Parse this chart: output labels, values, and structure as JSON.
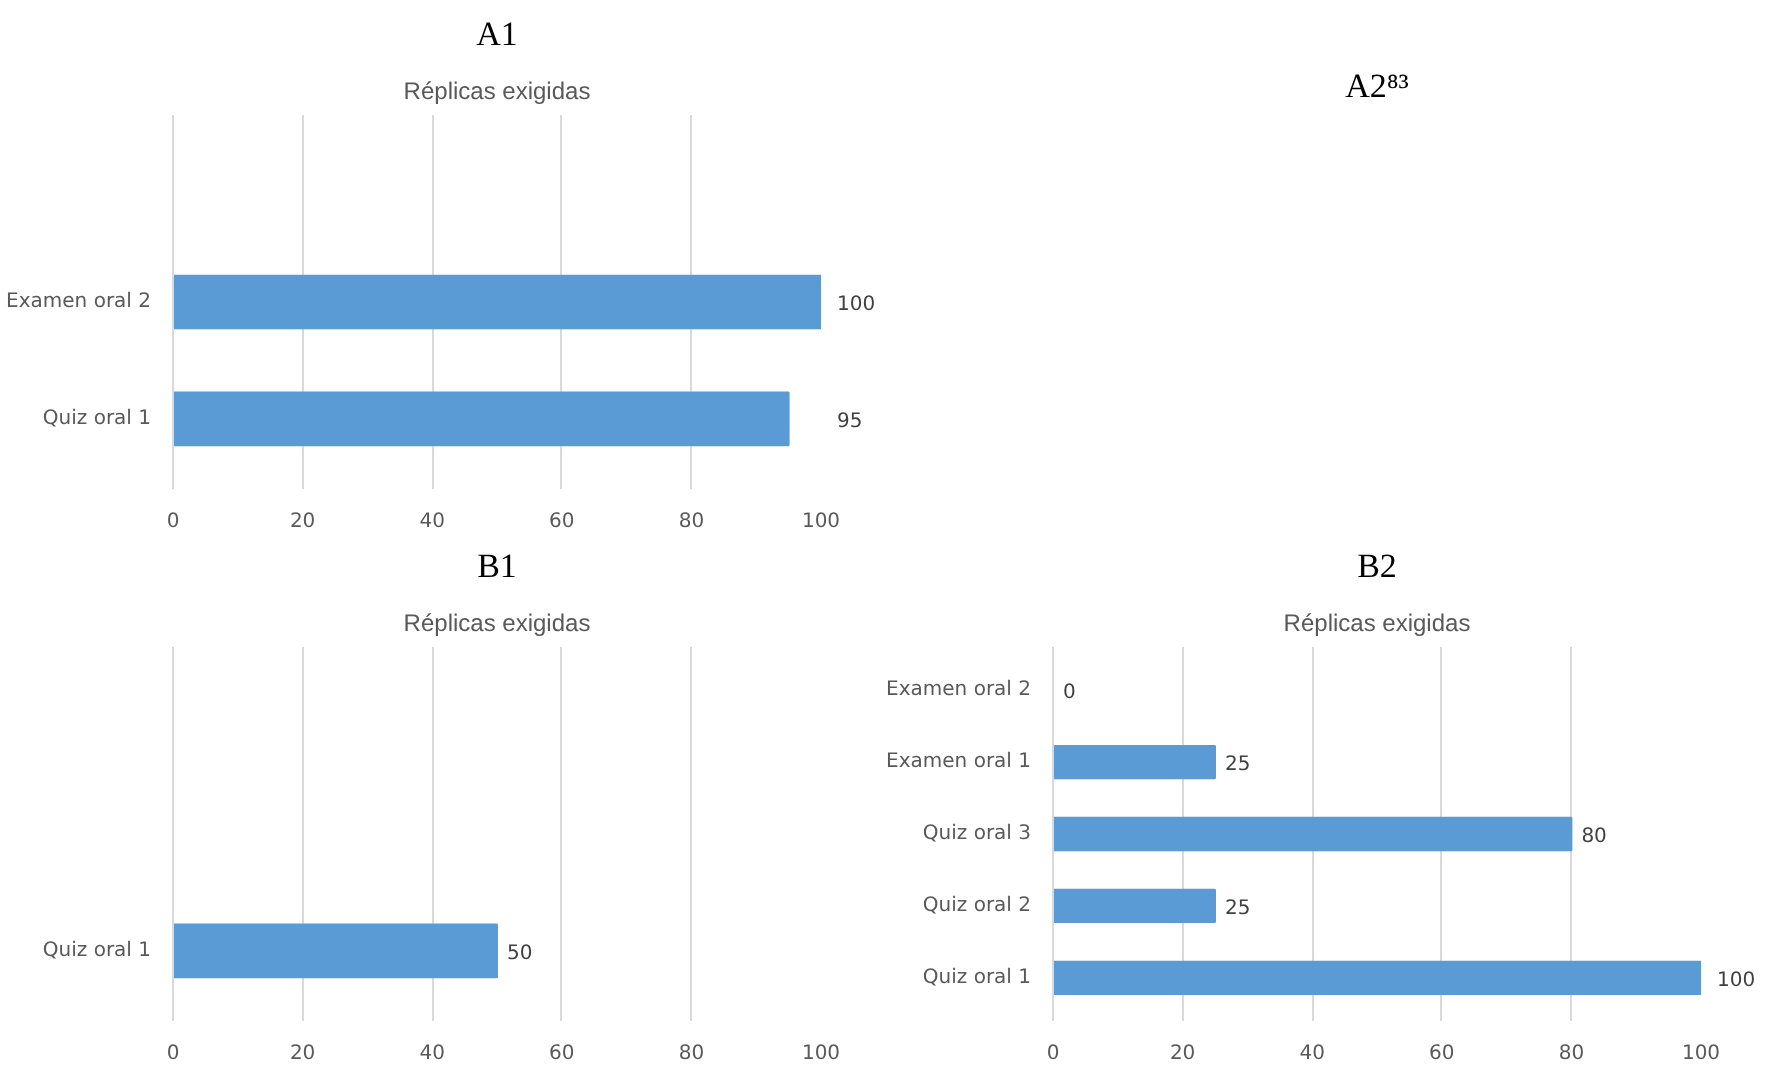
{
  "chart_data": [
    {
      "type": "bar",
      "title": "A1",
      "subtitle": "Réplicas exigidas",
      "orientation": "horizontal",
      "categories": [
        "Examen oral 2",
        "Quiz oral 1"
      ],
      "values": [
        100,
        95
      ],
      "color": "#5b9bd5",
      "xlim": [
        0,
        100
      ],
      "xticks": [
        0,
        20,
        40,
        60,
        80,
        100
      ],
      "grid": "x",
      "data_labels": true
    },
    {
      "type": "other",
      "title": "A2⁸³"
    },
    {
      "type": "bar",
      "title": "B1",
      "subtitle": "Réplicas exigidas",
      "orientation": "horizontal",
      "categories": [
        "Quiz oral 1"
      ],
      "values": [
        50
      ],
      "color": "#5b9bd5",
      "xlim": [
        0,
        100
      ],
      "xticks": [
        0,
        20,
        40,
        60,
        80,
        100
      ],
      "grid": "x",
      "data_labels": true
    },
    {
      "type": "bar",
      "title": "B2",
      "subtitle": "Réplicas exigidas",
      "orientation": "horizontal",
      "categories": [
        "Examen oral 2",
        "Examen oral 1",
        "Quiz oral 3",
        "Quiz oral 2",
        "Quiz oral 1"
      ],
      "values": [
        0,
        25,
        80,
        25,
        100
      ],
      "color": "#5b9bd5",
      "xlim": [
        0,
        100
      ],
      "xticks": [
        0,
        20,
        40,
        60,
        80,
        100
      ],
      "grid": "x",
      "data_labels": true
    }
  ]
}
